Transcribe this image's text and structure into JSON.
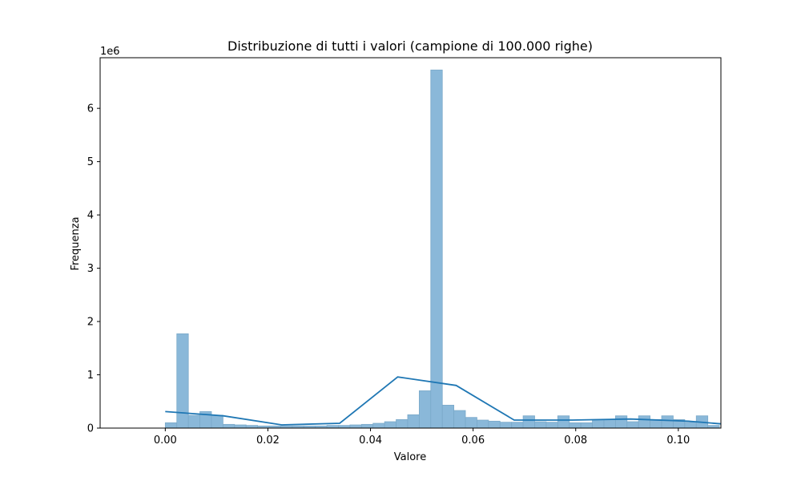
{
  "chart_data": {
    "type": "bar",
    "title": "Distribuzione di tutti i valori (campione di 100.000 righe)",
    "xlabel": "Valore",
    "ylabel": "Frequenza",
    "y_scale_label": "1e6",
    "xlim": [
      -0.0127,
      0.1083
    ],
    "ylim": [
      0,
      6.95
    ],
    "bin_width": 0.00225,
    "x_ticks": [
      0.0,
      0.02,
      0.04,
      0.06,
      0.08,
      0.1
    ],
    "x_tick_labels": [
      "0.00",
      "0.02",
      "0.04",
      "0.06",
      "0.08",
      "0.10"
    ],
    "y_ticks": [
      0,
      1,
      2,
      3,
      4,
      5,
      6
    ],
    "y_tick_labels": [
      "0",
      "1",
      "2",
      "3",
      "4",
      "5",
      "6"
    ],
    "bin_starts": [
      0.0,
      0.00225,
      0.0045,
      0.00675,
      0.009,
      0.01125,
      0.0135,
      0.01575,
      0.018,
      0.02025,
      0.0225,
      0.02475,
      0.027,
      0.02925,
      0.0315,
      0.03375,
      0.036,
      0.03825,
      0.0405,
      0.04275,
      0.045,
      0.04725,
      0.0495,
      0.05175,
      0.054,
      0.05625,
      0.0585,
      0.06075,
      0.063,
      0.06525,
      0.0675,
      0.06975,
      0.072,
      0.07425,
      0.0765,
      0.07875,
      0.081,
      0.08325,
      0.0855,
      0.08775,
      0.09,
      0.09225,
      0.0945,
      0.09675,
      0.099,
      0.10125,
      0.1035,
      0.10575
    ],
    "series": [
      {
        "name": "histogram",
        "values": [
          0.1,
          1.77,
          0.24,
          0.31,
          0.24,
          0.07,
          0.06,
          0.05,
          0.04,
          0.04,
          0.04,
          0.04,
          0.04,
          0.04,
          0.05,
          0.05,
          0.06,
          0.07,
          0.09,
          0.12,
          0.16,
          0.25,
          0.7,
          6.72,
          0.43,
          0.33,
          0.2,
          0.15,
          0.13,
          0.11,
          0.11,
          0.23,
          0.12,
          0.11,
          0.23,
          0.1,
          0.1,
          0.16,
          0.16,
          0.23,
          0.12,
          0.23,
          0.16,
          0.23,
          0.16,
          0.11,
          0.23,
          0.05
        ]
      },
      {
        "name": "kde",
        "x": [
          0.0,
          0.0113,
          0.0227,
          0.034,
          0.0453,
          0.0567,
          0.068,
          0.0793,
          0.0907,
          0.102,
          0.1083
        ],
        "values": [
          0.31,
          0.23,
          0.06,
          0.09,
          0.96,
          0.8,
          0.15,
          0.15,
          0.17,
          0.13,
          0.08
        ]
      }
    ],
    "colors": {
      "bar_fill": "#8ab8d9",
      "bar_edge": "#7aa9c9",
      "kde_line": "#1f77b4"
    },
    "grid": false
  }
}
